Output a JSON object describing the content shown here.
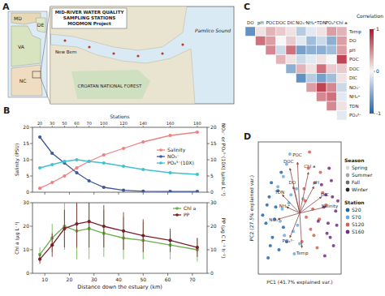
{
  "chart_data": [
    {
      "type": "map",
      "title": "A",
      "heading": [
        "MID-RIVER WATER QUALITY",
        "SAMPLING STATIONS",
        "MODMON Project"
      ],
      "states": [
        "MD",
        "DE",
        "VA",
        "NC"
      ],
      "places": [
        "New Bern",
        "CROATAN NATIONAL FOREST",
        "Pamlico Sound"
      ]
    },
    {
      "type": "line",
      "title": "B",
      "x": [
        8,
        13,
        18,
        23,
        28,
        34,
        42,
        50,
        61,
        72
      ],
      "xlim": [
        5,
        76
      ],
      "xticks": [
        10,
        20,
        30,
        40,
        50,
        60,
        70
      ],
      "ylim": [
        0,
        20
      ],
      "yticks": [
        0,
        5,
        10,
        15,
        20
      ],
      "y_label": "Salinity (PSU)",
      "y2lim": [
        0,
        20
      ],
      "y2ticks": [
        0,
        5,
        10,
        15,
        20
      ],
      "y2_label": "NO₃⁻ or PO₄³⁻(10X) (µmol L⁻¹)",
      "stations": {
        "label": "Stations",
        "names": [
          "20",
          "30",
          "50",
          "60",
          "70",
          "100",
          "120",
          "140",
          "160",
          "180"
        ]
      },
      "tick_labels": "y",
      "legend": "right",
      "marker": "circle",
      "series": [
        {
          "name": "Salinity",
          "color": "#f08080",
          "values": [
            1.2,
            3,
            5,
            7.5,
            9.5,
            11.5,
            13.5,
            15.5,
            17.5,
            18.5
          ]
        },
        {
          "name": "NO₃⁻",
          "color": "#3b5998",
          "axis": "y2",
          "values": [
            17,
            12,
            9,
            6,
            3.5,
            1.5,
            0.6,
            0.3,
            0.2,
            0.2
          ]
        },
        {
          "name": "PO₄³⁻(10X)",
          "color": "#3fc1d0",
          "axis": "y2",
          "values": [
            7.5,
            8.5,
            9.5,
            10,
            9.5,
            9,
            8,
            7,
            6,
            5.5
          ]
        }
      ]
    },
    {
      "type": "line",
      "x_label": "Distance down the estuary (km)",
      "x": [
        8,
        13,
        18,
        23,
        28,
        34,
        42,
        50,
        61,
        72
      ],
      "xlim": [
        5,
        76
      ],
      "xticks": [
        10,
        20,
        30,
        40,
        50,
        60,
        70
      ],
      "ylim": [
        0,
        30
      ],
      "yticks": [
        0,
        10,
        20,
        30
      ],
      "y_label": "Chl a (µg L⁻¹)",
      "y2lim": [
        0,
        30
      ],
      "y2ticks": [
        0,
        10,
        20,
        30
      ],
      "y2_label": "PP (µg C L⁻¹ h⁻¹)",
      "legend": "upper right",
      "marker": "circle",
      "series": [
        {
          "name": "Chl a",
          "color": "#6ab04c",
          "values": [
            8,
            15,
            20,
            18,
            19,
            17,
            15,
            14,
            12,
            10
          ],
          "errors": [
            3,
            6,
            10,
            12,
            13,
            10,
            9,
            8,
            6,
            5
          ]
        },
        {
          "name": "PP",
          "color": "#7b1e2b",
          "axis": "y2",
          "values": [
            6,
            12,
            19,
            21,
            22,
            20,
            18,
            16,
            14,
            11
          ],
          "errors": [
            2,
            5,
            8,
            10,
            11,
            9,
            8,
            7,
            5,
            4
          ]
        }
      ]
    },
    {
      "type": "heatmap",
      "title": "C",
      "columns": [
        "DO",
        "pH",
        "POC",
        "DOC",
        "DIC",
        "NO₃⁻",
        "NH₄⁺",
        "TDN",
        "PO₄³⁻",
        "Chl a"
      ],
      "rows": [
        "Temp",
        "DO",
        "pH",
        "POC",
        "DOC",
        "DIC",
        "NO₃⁻",
        "NH₄⁺",
        "TDN",
        "PO₄³⁻"
      ],
      "cells": [
        [
          -0.7,
          0.1,
          0.3,
          0.2,
          0.1,
          -0.3,
          -0.1,
          0.1,
          0.4,
          0.3
        ],
        [
          null,
          0.6,
          0.4,
          0.0,
          0.2,
          -0.1,
          -0.4,
          -0.2,
          -0.5,
          0.4
        ],
        [
          null,
          null,
          0.5,
          -0.2,
          0.6,
          -0.6,
          -0.5,
          -0.5,
          -0.4,
          0.4
        ],
        [
          null,
          null,
          null,
          0.3,
          0.1,
          -0.2,
          -0.1,
          0.1,
          0.0,
          0.8
        ],
        [
          null,
          null,
          null,
          null,
          -0.5,
          0.3,
          0.1,
          0.6,
          0.2,
          0.2
        ],
        [
          null,
          null,
          null,
          null,
          null,
          -0.7,
          -0.3,
          -0.6,
          -0.4,
          0.1
        ],
        [
          null,
          null,
          null,
          null,
          null,
          null,
          0.4,
          0.8,
          0.5,
          -0.2
        ],
        [
          null,
          null,
          null,
          null,
          null,
          null,
          null,
          0.5,
          0.6,
          -0.1
        ],
        [
          null,
          null,
          null,
          null,
          null,
          null,
          null,
          null,
          0.5,
          0.1
        ],
        [
          null,
          null,
          null,
          null,
          null,
          null,
          null,
          null,
          null,
          -0.1
        ]
      ],
      "colorbar": {
        "label": "Correlation",
        "range": [
          -1,
          1
        ],
        "ticks": [
          -1,
          0,
          1
        ],
        "colors": [
          "#2166ac",
          "#f7f7f7",
          "#b2182b"
        ]
      }
    },
    {
      "type": "scatter",
      "title": "D",
      "x_label": "PC1 (41.7% explained var.)",
      "y_label": "PC2 (27.5% explained var.)",
      "xlim": [
        -3.8,
        3.8
      ],
      "ylim": [
        -3,
        3.5
      ],
      "tick_labels": false,
      "legend": "right",
      "marker": "circle",
      "seasons": {
        "title": "Season",
        "names": [
          "Spring",
          "Summer",
          "Fall",
          "Winter"
        ],
        "colors": [
          "#d9d9d9",
          "#a6a6a6",
          "#6e6e6e",
          "#262626"
        ]
      },
      "legend_title": "Station",
      "series": [
        {
          "name": "S20",
          "color": "#2166ac",
          "x": [
            -3.1,
            -2.8,
            -2.5,
            -2.2,
            -3.4,
            -1.9,
            -2.6,
            -1.5,
            -2.9,
            -2.0,
            -1.2,
            -3.0,
            -2.3,
            -1.7,
            -2.7
          ],
          "values": [
            -0.5,
            0.8,
            -1.2,
            0.3,
            -0.1,
            -1.8,
            1.5,
            -0.7,
            -2.2,
            1.1,
            -1.4,
            0.4,
            -0.3,
            2.0,
            -1.6
          ]
        },
        {
          "name": "S70",
          "color": "#6baed6",
          "x": [
            -1.5,
            -1.0,
            -0.6,
            -1.8,
            -0.3,
            -1.2,
            0.0,
            -0.8,
            -2.0,
            -0.5,
            -1.4,
            0.3,
            -0.9,
            -0.2,
            -1.6
          ],
          "values": [
            1.8,
            0.5,
            -0.9,
            -0.4,
            1.2,
            2.4,
            -1.5,
            0.9,
            1.3,
            -2.0,
            -1.1,
            0.7,
            2.9,
            -0.6,
            0.2
          ]
        },
        {
          "name": "S120",
          "color": "#d6604d",
          "x": [
            0.5,
            1.0,
            1.4,
            0.8,
            1.8,
            0.2,
            1.2,
            2.1,
            0.6,
            1.6,
            2.4,
            0.9,
            1.9,
            0.4,
            1.3
          ],
          "values": [
            0.6,
            -0.8,
            1.5,
            2.2,
            -0.3,
            -1.4,
            0.2,
            1.0,
            -0.2,
            -1.7,
            0.4,
            3.0,
            2.0,
            1.2,
            -1.1
          ]
        },
        {
          "name": "S160",
          "color": "#762a83",
          "x": [
            2.2,
            2.6,
            3.0,
            2.8,
            3.3,
            2.0,
            2.5,
            3.4,
            2.9,
            1.7,
            3.1,
            2.4,
            2.7,
            3.5,
            2.3
          ],
          "values": [
            0.3,
            -0.5,
            0.8,
            -1.2,
            0.1,
            1.4,
            -1.0,
            -0.6,
            1.6,
            -0.4,
            -1.6,
            0.9,
            2.2,
            0.6,
            -2.1
          ]
        }
      ],
      "vectors": {
        "labels": [
          "DO",
          "pH",
          "POC",
          "DOC",
          "DIC",
          "NO₃⁻",
          "NH₄⁺",
          "TDN",
          "PO₄³⁻",
          "Chl a",
          "Temp",
          "Salinity"
        ],
        "x": [
          -0.6,
          1.3,
          -0.2,
          -0.9,
          2.0,
          -2.0,
          -1.2,
          -1.6,
          -0.9,
          0.8,
          0.2,
          2.4
        ],
        "y": [
          1.3,
          1.3,
          2.5,
          2.2,
          0.8,
          -0.3,
          0.3,
          0.9,
          -1.2,
          2.0,
          -1.7,
          0.3
        ]
      }
    }
  ]
}
